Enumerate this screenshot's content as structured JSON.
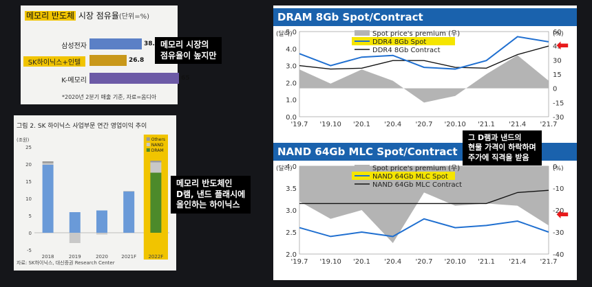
{
  "share_panel": {
    "title_highlight": "메모리 반도체",
    "title_rest": " 시장 점유율",
    "unit": "(단위=%)",
    "rows": [
      {
        "label": "삼성전자",
        "value": "38.2",
        "fraction": 0.382,
        "color": "#5b80c6"
      },
      {
        "label": "SK하이닉스+인텔",
        "value": "26.8",
        "fraction": 0.268,
        "color": "#c9981a"
      },
      {
        "label": "K-메모리",
        "value": "65",
        "fraction": 0.65,
        "color": "#6c5aa6"
      }
    ],
    "note": "*2020년 2분기 매출 기준, 자료=옴디아"
  },
  "callout_share": {
    "line1": "메모리 시장의",
    "line2": "점유율이 높지만"
  },
  "op_panel": {
    "title": "그림 2.  SK 하이닉스 사업부문 연간 영업이익 추이",
    "unit": "(조원)",
    "legend": [
      "Others",
      "NAND",
      "DRAM"
    ],
    "y_ticks": [
      "25",
      "20",
      "15",
      "10",
      "5",
      "0",
      "-5"
    ],
    "source": "자료: SK하이닉스, 대신증권 Research Center",
    "chart_data": {
      "type": "bar",
      "categories": [
        "2018",
        "2019",
        "2020",
        "2021F",
        "2022F"
      ],
      "series": [
        {
          "name": "DRAM",
          "values": [
            19.8,
            6,
            6.5,
            12,
            17.5
          ]
        },
        {
          "name": "NAND",
          "values": [
            0.5,
            -3,
            -0.5,
            0.2,
            3
          ]
        },
        {
          "name": "Others",
          "values": [
            0.5,
            0,
            0,
            0,
            0.5
          ]
        }
      ],
      "ylim": [
        -5,
        25
      ]
    }
  },
  "callout_op": {
    "line1": "메모리 반도체인",
    "line2": "D램, 낸드 플래시에",
    "line3": "올인하는 하이닉스"
  },
  "dram_chart": {
    "title": "DRAM 8Gb Spot/Contract",
    "left_unit": "(달러)",
    "right_unit": "(%)",
    "legend": [
      "Spot price's premium (우)",
      "DDR4 8Gb Spot",
      "DDR4 8Gb Contract"
    ],
    "left_ticks": [
      "5.0",
      "4.0",
      "3.0",
      "2.0",
      "1.0",
      "0.0"
    ],
    "right_ticks": [
      "60",
      "45",
      "30",
      "15",
      "0",
      "-15",
      "-30"
    ],
    "x_ticks": [
      "'19.7",
      "'19.10",
      "'20.1",
      "'20.4",
      "'20.7",
      "'20.10",
      "'21.1",
      "'21.4",
      "'21.7"
    ],
    "chart_data": {
      "type": "line",
      "x": [
        "'19.7",
        "'19.10",
        "'20.1",
        "'20.4",
        "'20.7",
        "'20.10",
        "'21.1",
        "'21.4",
        "'21.7"
      ],
      "series": [
        {
          "name": "DDR4 8Gb Spot",
          "values": [
            3.7,
            3.0,
            3.5,
            3.6,
            2.9,
            2.8,
            3.3,
            4.7,
            4.4
          ]
        },
        {
          "name": "DDR4 8Gb Contract",
          "values": [
            3.0,
            2.8,
            2.85,
            3.3,
            3.3,
            2.9,
            2.85,
            3.65,
            4.15
          ]
        },
        {
          "name": "Spot price's premium (우)",
          "values": [
            20,
            5,
            20,
            8,
            -15,
            -8,
            15,
            35,
            8
          ]
        }
      ]
    }
  },
  "callout_dram": {
    "line1": "그 D램과 낸드의",
    "line2": "현물 가격이 하락하며",
    "line3": "주가에 직격을 받음"
  },
  "nand_chart": {
    "title": "NAND 64Gb MLC Spot/Contract",
    "left_unit": "(달러)",
    "right_unit": "(%)",
    "legend": [
      "Spot price's premium (우)",
      "NAND 64Gb MLC Spot",
      "NAND 64Gb MLC Contract"
    ],
    "left_ticks": [
      "4.0",
      "3.5",
      "3.0",
      "2.5",
      "2.0"
    ],
    "right_ticks": [
      "0",
      "-10",
      "-20",
      "-30",
      "-40"
    ],
    "x_ticks": [
      "'19.7",
      "'19.10",
      "'20.1",
      "'20.4",
      "'20.7",
      "'20.10",
      "'21.1",
      "'21.4",
      "'21.7"
    ],
    "chart_data": {
      "type": "line",
      "x": [
        "'19.7",
        "'19.10",
        "'20.1",
        "'20.4",
        "'20.7",
        "'20.10",
        "'21.1",
        "'21.4",
        "'21.7"
      ],
      "series": [
        {
          "name": "NAND 64Gb MLC Spot",
          "values": [
            2.6,
            2.4,
            2.5,
            2.4,
            2.8,
            2.6,
            2.65,
            2.75,
            2.5
          ]
        },
        {
          "name": "NAND 64Gb MLC Contract",
          "values": [
            3.15,
            3.15,
            3.15,
            3.15,
            3.15,
            3.15,
            3.15,
            3.4,
            3.45
          ]
        },
        {
          "name": "Spot price's premium (우)",
          "values": [
            -16,
            -24,
            -20,
            -35,
            -12,
            -18,
            -17,
            -18,
            -27
          ]
        }
      ]
    }
  }
}
